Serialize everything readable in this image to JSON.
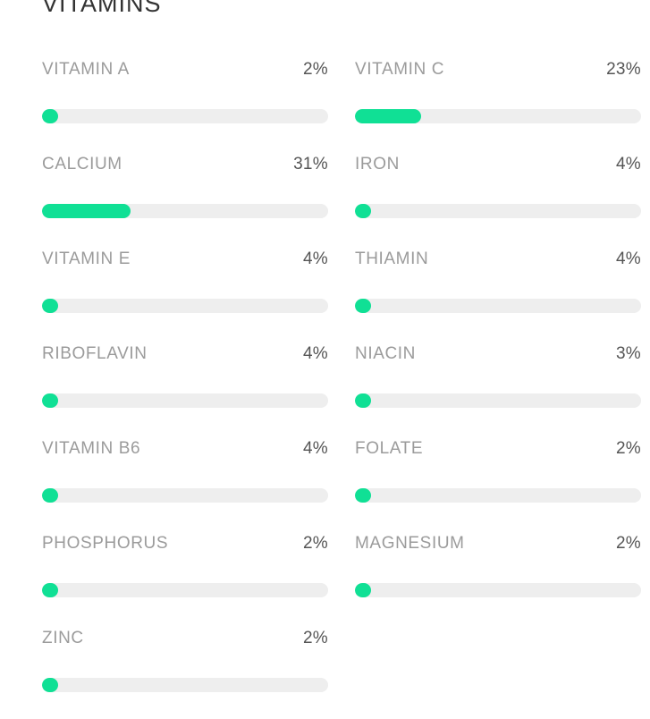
{
  "section": {
    "title": "VITAMINS"
  },
  "colors": {
    "accent": "#10e095",
    "track": "#eeeeee",
    "label": "#9b9b9b",
    "value": "#555555",
    "title": "#333333"
  },
  "nutrients": [
    {
      "name": "VITAMIN A",
      "percent_label": "2%",
      "percent": 2
    },
    {
      "name": "VITAMIN C",
      "percent_label": "23%",
      "percent": 23
    },
    {
      "name": "CALCIUM",
      "percent_label": "31%",
      "percent": 31
    },
    {
      "name": "IRON",
      "percent_label": "4%",
      "percent": 4
    },
    {
      "name": "VITAMIN E",
      "percent_label": "4%",
      "percent": 4
    },
    {
      "name": "THIAMIN",
      "percent_label": "4%",
      "percent": 4
    },
    {
      "name": "RIBOFLAVIN",
      "percent_label": "4%",
      "percent": 4
    },
    {
      "name": "NIACIN",
      "percent_label": "3%",
      "percent": 3
    },
    {
      "name": "VITAMIN B6",
      "percent_label": "4%",
      "percent": 4
    },
    {
      "name": "FOLATE",
      "percent_label": "2%",
      "percent": 2
    },
    {
      "name": "PHOSPHORUS",
      "percent_label": "2%",
      "percent": 2
    },
    {
      "name": "MAGNESIUM",
      "percent_label": "2%",
      "percent": 2
    },
    {
      "name": "ZINC",
      "percent_label": "2%",
      "percent": 2
    }
  ]
}
